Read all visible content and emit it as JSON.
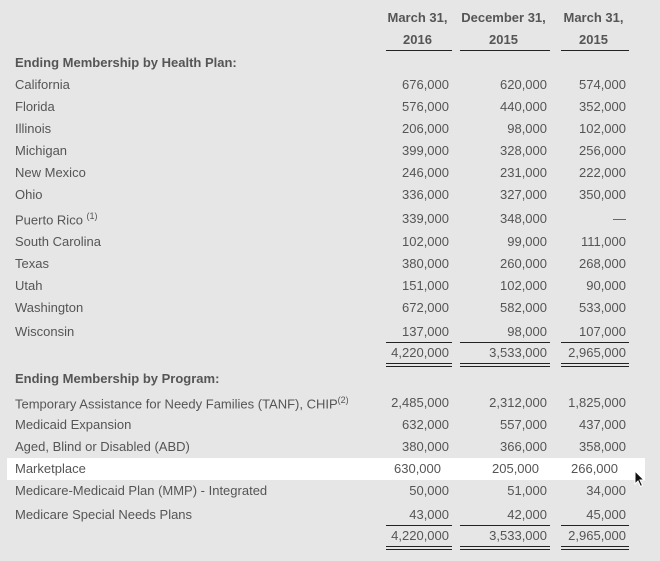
{
  "columns": [
    {
      "line1": "March 31,",
      "line2": "2016"
    },
    {
      "line1": "December 31,",
      "line2": "2015"
    },
    {
      "line1": "March 31,",
      "line2": "2015"
    }
  ],
  "health_plan": {
    "heading": "Ending Membership by Health Plan:",
    "rows": [
      {
        "label": "California",
        "values": [
          "676,000",
          "620,000",
          "574,000"
        ]
      },
      {
        "label": "Florida",
        "values": [
          "576,000",
          "440,000",
          "352,000"
        ]
      },
      {
        "label": "Illinois",
        "values": [
          "206,000",
          "98,000",
          "102,000"
        ]
      },
      {
        "label": "Michigan",
        "values": [
          "399,000",
          "328,000",
          "256,000"
        ]
      },
      {
        "label": "New Mexico",
        "values": [
          "246,000",
          "231,000",
          "222,000"
        ]
      },
      {
        "label": "Ohio",
        "values": [
          "336,000",
          "327,000",
          "350,000"
        ]
      },
      {
        "label": "Puerto Rico",
        "note": "(1)",
        "values": [
          "339,000",
          "348,000",
          "—"
        ]
      },
      {
        "label": "South Carolina",
        "values": [
          "102,000",
          "99,000",
          "111,000"
        ]
      },
      {
        "label": "Texas",
        "values": [
          "380,000",
          "260,000",
          "268,000"
        ]
      },
      {
        "label": "Utah",
        "values": [
          "151,000",
          "102,000",
          "90,000"
        ]
      },
      {
        "label": "Washington",
        "values": [
          "672,000",
          "582,000",
          "533,000"
        ]
      },
      {
        "label": "Wisconsin",
        "values": [
          "137,000",
          "98,000",
          "107,000"
        ]
      }
    ],
    "total": [
      "4,220,000",
      "3,533,000",
      "2,965,000"
    ]
  },
  "program": {
    "heading": "Ending Membership by Program:",
    "rows": [
      {
        "label": "Temporary Assistance for Needy Families (TANF), CHIP",
        "note": "(2)",
        "values": [
          "2,485,000",
          "2,312,000",
          "1,825,000"
        ]
      },
      {
        "label": "Medicaid Expansion",
        "values": [
          "632,000",
          "557,000",
          "437,000"
        ]
      },
      {
        "label": "Aged, Blind or Disabled (ABD)",
        "values": [
          "380,000",
          "366,000",
          "358,000"
        ]
      },
      {
        "label": "Marketplace",
        "values": [
          "630,000",
          "205,000",
          "266,000"
        ],
        "highlighted": true
      },
      {
        "label": "Medicare-Medicaid Plan (MMP) - Integrated",
        "values": [
          "50,000",
          "51,000",
          "34,000"
        ]
      },
      {
        "label": "Medicare Special Needs Plans",
        "values": [
          "43,000",
          "42,000",
          "45,000"
        ]
      }
    ],
    "total": [
      "4,220,000",
      "3,533,000",
      "2,965,000"
    ]
  }
}
